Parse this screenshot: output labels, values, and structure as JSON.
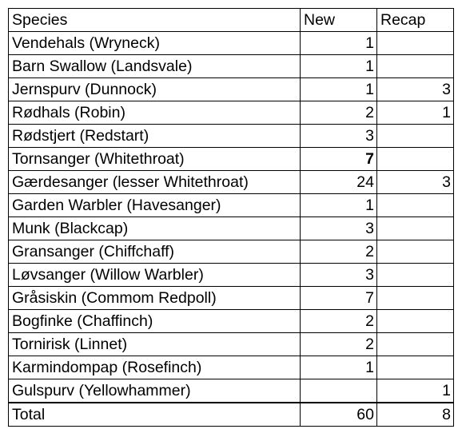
{
  "headers": {
    "species": "Species",
    "new": "New",
    "recap": "Recap"
  },
  "rows": [
    {
      "species": "Vendehals (Wryneck)",
      "new": "1",
      "recap": ""
    },
    {
      "species": "Barn Swallow (Landsvale)",
      "new": "1",
      "recap": ""
    },
    {
      "species": "Jernspurv (Dunnock)",
      "new": "1",
      "recap": "3"
    },
    {
      "species": "Rødhals (Robin)",
      "new": "2",
      "recap": "1"
    },
    {
      "species": "Rødstjert (Redstart)",
      "new": "3",
      "recap": ""
    },
    {
      "species": "Tornsanger (Whitethroat)",
      "new": "7",
      "recap": ""
    },
    {
      "species": "Gærdesanger (lesser Whitethroat)",
      "new": "24",
      "recap": "3"
    },
    {
      "species": "Garden Warbler (Havesanger)",
      "new": "1",
      "recap": ""
    },
    {
      "species": "Munk (Blackcap)",
      "new": "3",
      "recap": ""
    },
    {
      "species": "Gransanger (Chiffchaff)",
      "new": "2",
      "recap": ""
    },
    {
      "species": "Løvsanger (Willow Warbler)",
      "new": "3",
      "recap": ""
    },
    {
      "species": "Gråsiskin (Commom Redpoll)",
      "new": "7",
      "recap": ""
    },
    {
      "species": "Bogfinke (Chaffinch)",
      "new": "2",
      "recap": ""
    },
    {
      "species": "Tornirisk (Linnet)",
      "new": "2",
      "recap": ""
    },
    {
      "species": "Karmindompap (Rosefinch)",
      "new": "1",
      "recap": ""
    },
    {
      "species": "Gulspurv (Yellowhammer)",
      "new": "",
      "recap": "1"
    }
  ],
  "total": {
    "label": "Total",
    "new": "60",
    "recap": "8"
  }
}
